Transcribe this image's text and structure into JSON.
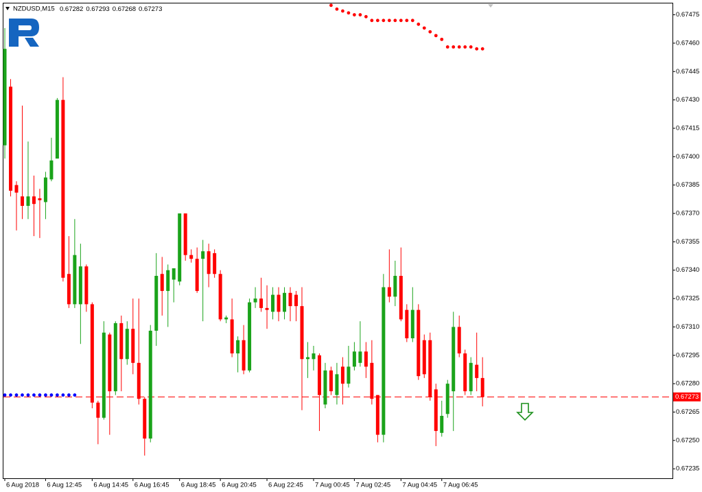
{
  "chart_data": {
    "type": "candlestick",
    "title": "NZDUSD,M15",
    "quote": [
      0.67282,
      0.67293,
      0.67268,
      0.67273
    ],
    "categories": [
      "6 Aug 2018",
      null,
      null,
      null,
      null,
      null,
      null,
      "6 Aug 12:45",
      null,
      null,
      null,
      null,
      null,
      null,
      null,
      "6 Aug 14:45",
      null,
      null,
      null,
      null,
      null,
      null,
      "6 Aug 16:45",
      null,
      null,
      null,
      null,
      null,
      null,
      null,
      "6 Aug 18:45",
      null,
      null,
      null,
      null,
      null,
      null,
      "6 Aug 20:45",
      null,
      null,
      null,
      null,
      null,
      null,
      null,
      "6 Aug 22:45",
      null,
      null,
      null,
      null,
      null,
      null,
      null,
      "7 Aug 00:45",
      null,
      null,
      null,
      null,
      null,
      null,
      "7 Aug 02:45",
      null,
      null,
      null,
      null,
      null,
      null,
      null,
      "7 Aug 04:45",
      null,
      null,
      null,
      null,
      null,
      null,
      "7 Aug 06:45",
      null,
      null,
      null,
      null,
      null,
      null,
      null
    ],
    "open": [
      0.67406,
      0.67437,
      0.67385,
      0.67379,
      0.67374,
      0.67379,
      0.67378,
      0.67376,
      0.67388,
      0.67399,
      0.6743,
      0.67338,
      0.67322,
      0.67322,
      0.67342,
      0.67322,
      0.6727,
      0.67262,
      0.67306,
      0.67276,
      0.67312,
      0.67293,
      0.67309,
      0.67291,
      0.67272,
      0.67251,
      0.67308,
      0.67338,
      0.67329,
      0.67335,
      0.67334,
      0.6737,
      0.67348,
      0.67346,
      0.67346,
      0.6735,
      0.67349,
      0.67338,
      0.67314,
      0.67314,
      0.67296,
      0.67303,
      0.67287,
      0.67323,
      0.67325,
      0.6732,
      0.67318,
      0.67327,
      0.67318,
      0.67328,
      0.67327,
      0.67321,
      0.67293,
      0.67293,
      0.67295,
      0.67269,
      0.67287,
      0.67274,
      0.67289,
      0.6728,
      0.67289,
      0.67291,
      0.67297,
      0.67291,
      0.67274,
      0.67253,
      0.67331,
      0.67326,
      0.67337,
      0.67319,
      0.67304,
      0.67319,
      0.67303,
      0.67303,
      0.67277,
      0.67254,
      0.67264,
      0.67276,
      0.6731,
      0.67296,
      0.67276,
      0.6729,
      0.67283
    ],
    "high": [
      0.67468,
      0.67441,
      0.67387,
      0.67427,
      0.67408,
      0.6739,
      0.67383,
      0.67392,
      0.6741,
      0.67431,
      0.67442,
      0.67358,
      0.67367,
      0.67354,
      0.67343,
      0.67323,
      0.67271,
      0.67313,
      0.67307,
      0.67313,
      0.67316,
      0.67313,
      0.67325,
      0.67325,
      0.67273,
      0.67311,
      0.67349,
      0.67347,
      0.67343,
      0.67341,
      0.6737,
      0.6737,
      0.67351,
      0.67352,
      0.67356,
      0.67354,
      0.67351,
      0.6734,
      0.67316,
      0.67325,
      0.67305,
      0.67311,
      0.67325,
      0.67331,
      0.67336,
      0.67332,
      0.67331,
      0.67331,
      0.67331,
      0.67331,
      0.67329,
      0.67331,
      0.67302,
      0.673,
      0.67296,
      0.67291,
      0.67289,
      0.67291,
      0.67294,
      0.673,
      0.67302,
      0.67313,
      0.67302,
      0.67303,
      0.67274,
      0.67338,
      0.67351,
      0.67345,
      0.67352,
      0.67322,
      0.67331,
      0.67322,
      0.67306,
      0.67307,
      0.6728,
      0.67271,
      0.67282,
      0.67318,
      0.67316,
      0.67298,
      0.67294,
      0.67307,
      0.67294
    ],
    "low": [
      0.67399,
      0.67379,
      0.67361,
      0.67367,
      0.67367,
      0.67358,
      0.67357,
      0.67367,
      0.67387,
      0.67399,
      0.67334,
      0.6732,
      0.6732,
      0.67301,
      0.67318,
      0.67267,
      0.67248,
      0.67261,
      0.67253,
      0.67274,
      0.67276,
      0.6729,
      0.67285,
      0.67269,
      0.67242,
      0.67249,
      0.673,
      0.67316,
      0.6731,
      0.67323,
      0.67332,
      0.67345,
      0.67344,
      0.67328,
      0.67313,
      0.67331,
      0.67336,
      0.67313,
      0.67312,
      0.67294,
      0.67286,
      0.67285,
      0.67286,
      0.6732,
      0.67318,
      0.67309,
      0.67314,
      0.67313,
      0.67314,
      0.67313,
      0.67313,
      0.67266,
      0.67283,
      0.67287,
      0.67255,
      0.67267,
      0.67274,
      0.67269,
      0.67269,
      0.67278,
      0.67287,
      0.67289,
      0.67283,
      0.67269,
      0.67249,
      0.67249,
      0.67323,
      0.67321,
      0.67313,
      0.67302,
      0.67302,
      0.67282,
      0.67283,
      0.67271,
      0.67247,
      0.67252,
      0.67262,
      0.67255,
      0.67294,
      0.67274,
      0.67274,
      0.67276,
      0.67268
    ],
    "close": [
      0.67457,
      0.67382,
      0.67381,
      0.67374,
      0.67379,
      0.67375,
      0.67377,
      0.67389,
      0.67398,
      0.6743,
      0.67336,
      0.67322,
      0.67348,
      0.67342,
      0.67322,
      0.6727,
      0.67262,
      0.67307,
      0.67276,
      0.67312,
      0.67293,
      0.67309,
      0.67291,
      0.67272,
      0.67251,
      0.67308,
      0.67337,
      0.67329,
      0.6734,
      0.67341,
      0.6737,
      0.67348,
      0.67346,
      0.67329,
      0.6735,
      0.67338,
      0.67338,
      0.67314,
      0.67315,
      0.67296,
      0.67303,
      0.67287,
      0.67323,
      0.67325,
      0.6732,
      0.67319,
      0.67327,
      0.67318,
      0.67328,
      0.67321,
      0.67321,
      0.67293,
      0.67294,
      0.67296,
      0.67274,
      0.67287,
      0.67276,
      0.67285,
      0.6728,
      0.67289,
      0.67297,
      0.67297,
      0.67289,
      0.67272,
      0.67253,
      0.67331,
      0.67326,
      0.67337,
      0.67314,
      0.67304,
      0.67319,
      0.67284,
      0.67285,
      0.67273,
      0.67255,
      0.67263,
      0.6728,
      0.6731,
      0.67296,
      0.67276,
      0.67291,
      0.67283,
      0.67273
    ],
    "up_color": "#1aa31a",
    "down_color": "#ff0000",
    "indicators": [
      {
        "color": "#ff0000",
        "values": [
          null,
          null,
          null,
          null,
          null,
          null,
          null,
          null,
          null,
          null,
          null,
          null,
          null,
          null,
          null,
          null,
          null,
          null,
          null,
          null,
          null,
          null,
          null,
          null,
          null,
          null,
          null,
          null,
          null,
          null,
          null,
          null,
          null,
          null,
          null,
          null,
          null,
          null,
          null,
          null,
          null,
          null,
          null,
          null,
          null,
          null,
          null,
          null,
          null,
          null,
          null,
          null,
          null,
          null,
          null,
          null,
          0.6748,
          0.67478,
          0.67477,
          0.67476,
          0.67475,
          0.67475,
          0.67474,
          0.67472,
          0.67472,
          0.67472,
          0.67472,
          0.67472,
          0.67472,
          0.67472,
          0.67472,
          0.6747,
          0.67468,
          0.67466,
          0.67464,
          0.67462,
          0.67458,
          0.67458,
          0.67458,
          0.67458,
          0.67458,
          0.67457,
          0.67457
        ]
      },
      {
        "color": "#0000ff",
        "values": [
          0.67274,
          0.67274,
          0.67274,
          0.67274,
          0.67274,
          0.67274,
          0.67274,
          0.67274,
          0.67274,
          0.67274,
          0.67274,
          0.67274,
          0.67274,
          null,
          null,
          null,
          null,
          null,
          null,
          null,
          null,
          null,
          null,
          null,
          null,
          null,
          null,
          null,
          null,
          null,
          null,
          null,
          null,
          null,
          null,
          null,
          null,
          null,
          null,
          null,
          null,
          null,
          null,
          null,
          null,
          null,
          null,
          null,
          null,
          null,
          null,
          null,
          null,
          null,
          null,
          null,
          null,
          null,
          null,
          null,
          null,
          null,
          null,
          null,
          null,
          null,
          null,
          null,
          null,
          null,
          null,
          null,
          null,
          null,
          null,
          null,
          null,
          null,
          null,
          null,
          null
        ]
      }
    ],
    "price_line": {
      "value": 0.67273,
      "color": "#ff0000"
    },
    "ylim": [
      0.6723,
      0.67481
    ],
    "yticks": [
      0.67475,
      {
        "value": 0.6746,
        "label": "0.67460"
      },
      0.67445,
      {
        "value": 0.6743,
        "label": "0.67430"
      },
      0.67415,
      {
        "value": 0.674,
        "label": "0.67400"
      },
      0.67385,
      {
        "value": 0.6737,
        "label": "0.67370"
      },
      0.67355,
      {
        "value": 0.6734,
        "label": "0.67340"
      },
      0.67325,
      {
        "value": 0.6731,
        "label": "0.67310"
      },
      0.67295,
      {
        "value": 0.6728,
        "label": "0.67280"
      },
      0.67265,
      {
        "value": 0.6725,
        "label": "0.67250"
      },
      0.67235
    ]
  }
}
